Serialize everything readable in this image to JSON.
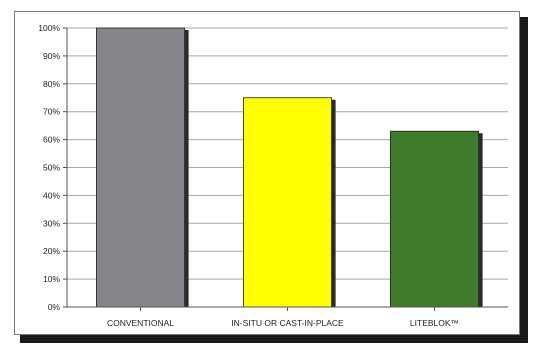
{
  "chart_data": {
    "type": "bar",
    "title": "",
    "xlabel": "",
    "ylabel": "",
    "categories": [
      "CONVENTIONAL",
      "IN-SITU OR CAST-IN-PLACE",
      "LITEBLOK™"
    ],
    "values": [
      100,
      75,
      63
    ],
    "colors": [
      "#86858c",
      "#ffff00",
      "#3f7b2c"
    ],
    "ylim": [
      0,
      100
    ],
    "yticks": [
      "0%",
      "10%",
      "20%",
      "30%",
      "40%",
      "50%",
      "60%",
      "70%",
      "80%",
      "90%",
      "100%"
    ],
    "grid": true,
    "legend": "none"
  }
}
